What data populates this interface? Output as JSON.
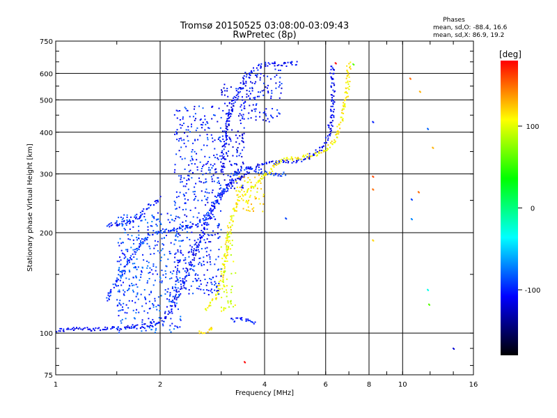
{
  "chart_data": {
    "type": "scatter",
    "title": "Tromsø 20150525 03:08:00-03:09:43",
    "subtitle": "RwPretec (8p)",
    "xlabel": "Frequency [MHz]",
    "ylabel": "Stationary phase Virtual Height [km]",
    "x_scale": "log",
    "y_scale": "log",
    "xlim": [
      1,
      16
    ],
    "ylim": [
      75,
      750
    ],
    "x_ticks": [
      1,
      2,
      4,
      6,
      8,
      10,
      16
    ],
    "y_ticks": [
      75,
      100,
      200,
      300,
      400,
      500,
      600,
      750
    ],
    "grid": true,
    "stats": {
      "heading": "Phases",
      "line_o": "mean, sd,O: -88.4, 16.6",
      "line_x": "mean, sd,X:  86.9, 19.2"
    },
    "colorbar": {
      "label": "[deg]",
      "range": [
        -180,
        180
      ],
      "ticks": [
        100,
        0,
        -100
      ],
      "colors": [
        "#ff0000",
        "#ffff00",
        "#00ff00",
        "#00ffff",
        "#0000ff",
        "#000000"
      ]
    },
    "traces": [
      {
        "type": "curve",
        "color_deg": -110,
        "spread": 3,
        "points": [
          [
            1.0,
            102
          ],
          [
            1.2,
            103
          ],
          [
            1.5,
            103
          ],
          [
            1.8,
            105
          ],
          [
            2.0,
            108
          ],
          [
            2.15,
            118
          ],
          [
            2.3,
            135
          ],
          [
            2.45,
            160
          ],
          [
            2.6,
            190
          ],
          [
            2.75,
            220
          ],
          [
            2.9,
            245
          ],
          [
            3.05,
            265
          ],
          [
            3.2,
            280
          ],
          [
            3.4,
            292
          ],
          [
            3.6,
            305
          ],
          [
            3.8,
            315
          ],
          [
            4.0,
            322
          ],
          [
            4.4,
            326
          ],
          [
            4.8,
            328
          ],
          [
            5.2,
            332
          ],
          [
            5.6,
            345
          ],
          [
            6.0,
            370
          ],
          [
            6.2,
            410
          ],
          [
            6.3,
            480
          ],
          [
            6.3,
            560
          ],
          [
            6.25,
            640
          ]
        ]
      },
      {
        "type": "curve",
        "color_deg": -95,
        "spread": 3,
        "points": [
          [
            1.4,
            125
          ],
          [
            1.6,
            160
          ],
          [
            1.75,
            185
          ],
          [
            1.9,
            200
          ],
          [
            2.05,
            202
          ],
          [
            2.2,
            204
          ],
          [
            2.4,
            207
          ],
          [
            2.6,
            212
          ],
          [
            2.8,
            235
          ],
          [
            3.0,
            262
          ],
          [
            3.2,
            290
          ],
          [
            3.4,
            308
          ],
          [
            3.6,
            312
          ],
          [
            3.9,
            305
          ],
          [
            4.2,
            298
          ],
          [
            4.6,
            300
          ]
        ]
      },
      {
        "type": "curve",
        "color_deg": -108,
        "spread": 3,
        "points": [
          [
            3.0,
            300
          ],
          [
            3.05,
            350
          ],
          [
            3.1,
            400
          ],
          [
            3.15,
            440
          ],
          [
            3.25,
            490
          ],
          [
            3.4,
            540
          ],
          [
            3.6,
            590
          ],
          [
            3.8,
            625
          ],
          [
            4.0,
            640
          ],
          [
            4.3,
            640
          ],
          [
            4.6,
            638
          ],
          [
            5.0,
            645
          ]
        ]
      },
      {
        "type": "curve",
        "color_deg": -105,
        "spread": 3,
        "points": [
          [
            1.4,
            210
          ],
          [
            1.55,
            214
          ],
          [
            1.7,
            218
          ],
          [
            1.85,
            240
          ],
          [
            2.0,
            255
          ]
        ]
      },
      {
        "type": "curve",
        "color_deg": 110,
        "spread": 3,
        "points": [
          [
            2.7,
            118
          ],
          [
            2.85,
            125
          ],
          [
            3.0,
            145
          ],
          [
            3.1,
            170
          ],
          [
            3.15,
            200
          ],
          [
            3.25,
            235
          ],
          [
            3.4,
            255
          ],
          [
            3.6,
            268
          ],
          [
            3.8,
            280
          ],
          [
            4.0,
            295
          ],
          [
            4.3,
            320
          ],
          [
            4.6,
            332
          ],
          [
            5.0,
            335
          ],
          [
            5.5,
            342
          ],
          [
            6.0,
            350
          ],
          [
            6.4,
            380
          ],
          [
            6.7,
            440
          ],
          [
            6.9,
            520
          ],
          [
            7.0,
            600
          ],
          [
            7.0,
            650
          ]
        ]
      },
      {
        "type": "curve",
        "color_deg": 120,
        "spread": 3,
        "points": [
          [
            2.6,
            100
          ],
          [
            2.7,
            101
          ],
          [
            2.85,
            104
          ]
        ]
      },
      {
        "type": "curve",
        "color_deg": -105,
        "spread": 3,
        "points": [
          [
            3.2,
            109
          ],
          [
            3.4,
            110
          ],
          [
            3.6,
            109
          ],
          [
            3.8,
            108
          ]
        ]
      },
      {
        "type": "cloud",
        "color_deg": -100,
        "x": [
          2.2,
          3.0
        ],
        "y": [
          130,
          480
        ]
      },
      {
        "type": "cloud",
        "color_deg": -90,
        "x": [
          1.5,
          2.3
        ],
        "y": [
          100,
          230
        ]
      },
      {
        "type": "cloud",
        "color_deg": -112,
        "x": [
          3.0,
          3.5
        ],
        "y": [
          270,
          560
        ]
      },
      {
        "type": "cloud",
        "color_deg": -106,
        "x": [
          3.4,
          4.5
        ],
        "y": [
          430,
          620
        ]
      },
      {
        "type": "cloud",
        "color_deg": 100,
        "x": [
          3.0,
          3.3
        ],
        "y": [
          115,
          200
        ]
      },
      {
        "type": "cloud",
        "color_deg": 115,
        "x": [
          3.3,
          4.0
        ],
        "y": [
          230,
          300
        ]
      }
    ],
    "isolated_points": [
      [
        8.2,
        430,
        -100
      ],
      [
        8.2,
        190,
        120
      ],
      [
        8.2,
        295,
        160
      ],
      [
        8.2,
        270,
        150
      ],
      [
        10.5,
        580,
        150
      ],
      [
        11.2,
        530,
        130
      ],
      [
        11.8,
        410,
        -80
      ],
      [
        12.2,
        360,
        130
      ],
      [
        11.1,
        265,
        150
      ],
      [
        10.6,
        252,
        -90
      ],
      [
        10.6,
        220,
        -70
      ],
      [
        11.8,
        135,
        -30
      ],
      [
        11.9,
        122,
        60
      ],
      [
        14.0,
        90,
        -120
      ],
      [
        7.2,
        640,
        60
      ],
      [
        6.4,
        645,
        180
      ],
      [
        4.6,
        221,
        -90
      ],
      [
        3.5,
        82,
        180
      ],
      [
        3.2,
        320,
        -110
      ],
      [
        6.1,
        420,
        -110
      ]
    ]
  }
}
